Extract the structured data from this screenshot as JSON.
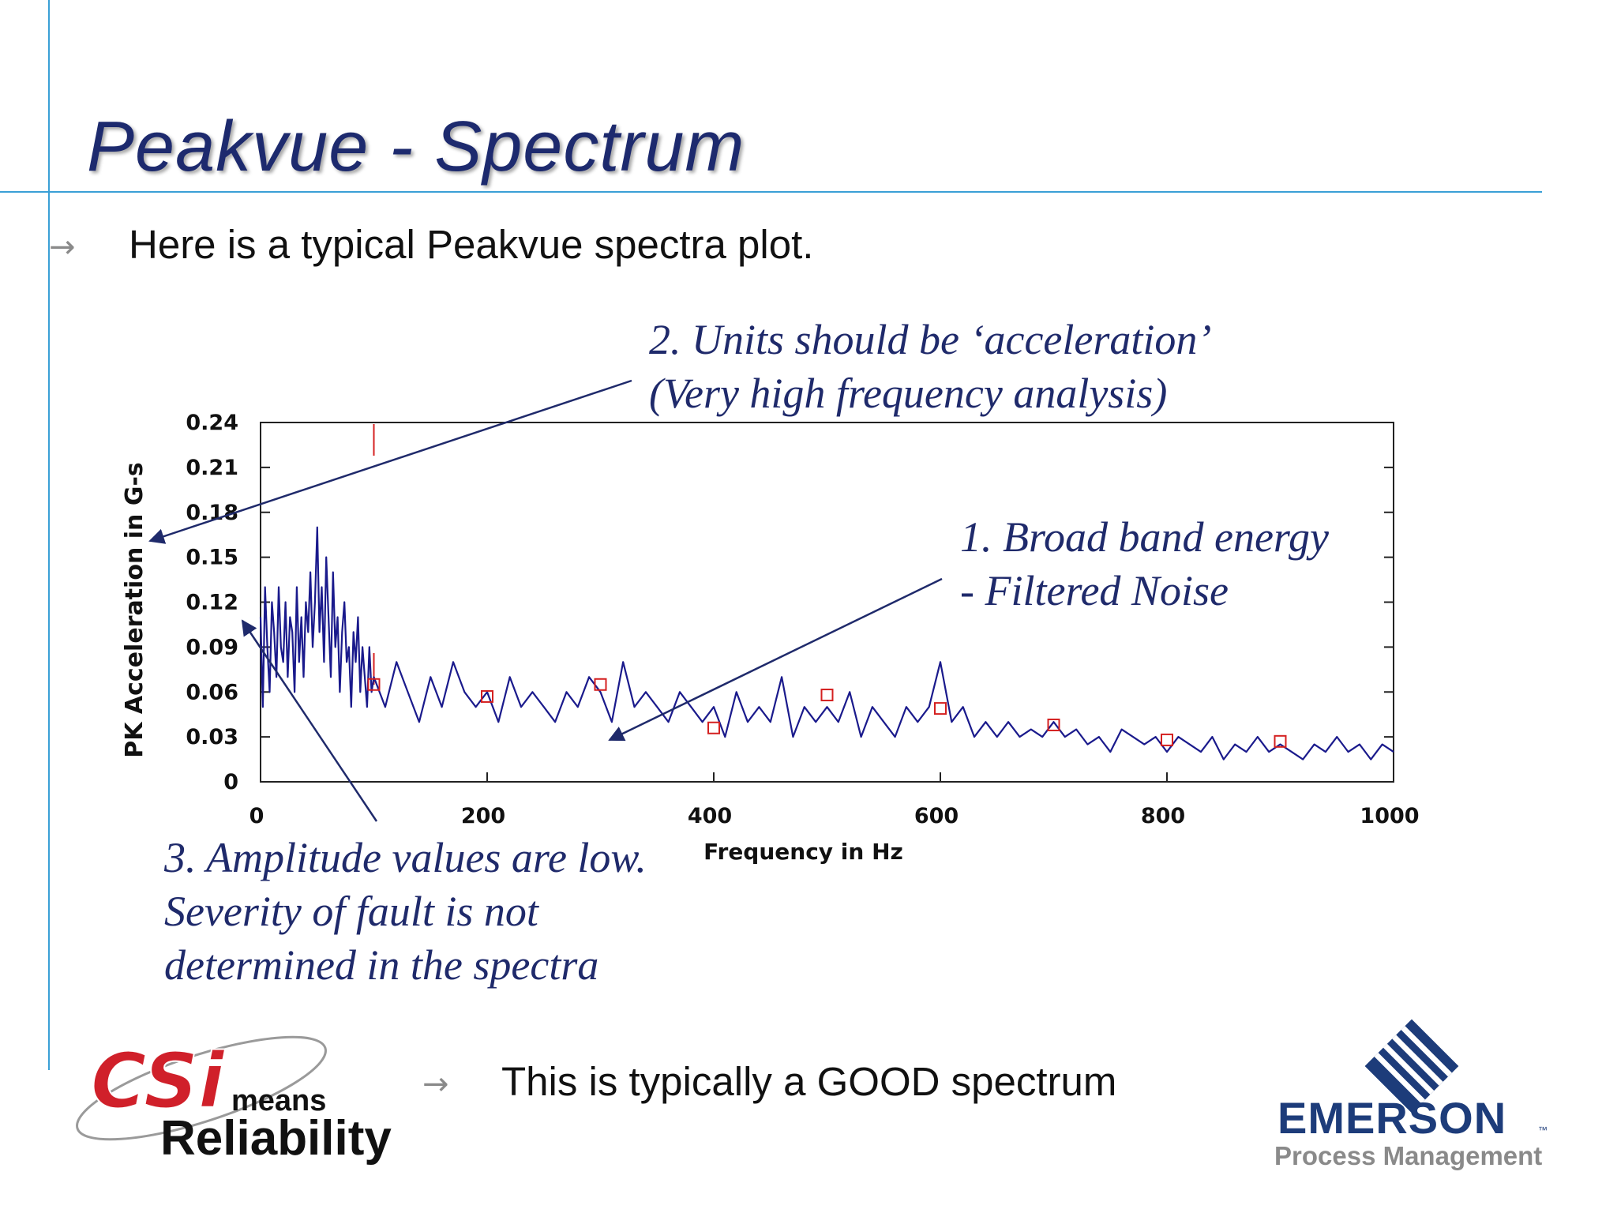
{
  "slide": {
    "title": "Peakvue - Spectrum",
    "bullet_top": "Here is a typical Peakvue spectra plot.",
    "bullet_bottom": "This is typically a GOOD spectrum",
    "bullet_arrow_glyph": "→"
  },
  "annotations": {
    "units_line1": "2. Units should be ‘acceleration’",
    "units_line2": "(Very high frequency analysis)",
    "broadband_line1": "1. Broad band energy",
    "broadband_line2": "- Filtered Noise",
    "amplitude_line1": "3. Amplitude values are low.",
    "amplitude_line2": "Severity of fault is not",
    "amplitude_line3": "determined in the spectra"
  },
  "logos": {
    "csi_text": "CSi",
    "csi_means": "means",
    "csi_reliability": "Reliability",
    "emerson": "EMERSON",
    "emerson_tm": "™",
    "emerson_sub": "Process Management"
  },
  "colors": {
    "title": "#1d2a6e",
    "accent_line": "#3aa0d6",
    "spectrum": "#1a1a8c",
    "annotation": "#1f2a6b",
    "marker_red": "#d42020",
    "csi_red": "#d0202a",
    "emerson_blue": "#1d3c7a"
  },
  "chart_data": {
    "type": "line",
    "xlabel": "Frequency in Hz",
    "ylabel": "PK Acceleration in G-s",
    "xlim": [
      0,
      1000
    ],
    "ylim": [
      0,
      0.24
    ],
    "xticks": [
      "0",
      "200",
      "400",
      "600",
      "800",
      "1000"
    ],
    "yticks": [
      "0.24",
      "0.21",
      "0.18",
      "0.15",
      "0.12",
      "0.09",
      "0.06",
      "0.03",
      "0"
    ],
    "grid": false,
    "cursor_frequency": 100,
    "series": [
      {
        "x": [
          0,
          2,
          4,
          6,
          8,
          10,
          12,
          14,
          16,
          18,
          20,
          22,
          24,
          26,
          28,
          30,
          32,
          34,
          36,
          38,
          40,
          42,
          44,
          46,
          48,
          50,
          52,
          54,
          56,
          58,
          60,
          62,
          64,
          66,
          68,
          70,
          72,
          74,
          76,
          78,
          80,
          82,
          84,
          86,
          88,
          90,
          92,
          94,
          96,
          98,
          100,
          110,
          120,
          130,
          140,
          150,
          160,
          170,
          180,
          190,
          200,
          210,
          220,
          230,
          240,
          250,
          260,
          270,
          280,
          290,
          300,
          310,
          320,
          330,
          340,
          350,
          360,
          370,
          380,
          390,
          400,
          410,
          420,
          430,
          440,
          450,
          460,
          470,
          480,
          490,
          500,
          510,
          520,
          530,
          540,
          550,
          560,
          570,
          580,
          590,
          600,
          610,
          620,
          630,
          640,
          650,
          660,
          670,
          680,
          690,
          700,
          710,
          720,
          730,
          740,
          750,
          760,
          770,
          780,
          790,
          800,
          810,
          820,
          830,
          840,
          850,
          860,
          870,
          880,
          890,
          900,
          910,
          920,
          930,
          940,
          950,
          960,
          970,
          980,
          990,
          1000
        ],
        "y": [
          0.11,
          0.05,
          0.13,
          0.09,
          0.06,
          0.12,
          0.1,
          0.07,
          0.13,
          0.09,
          0.08,
          0.12,
          0.07,
          0.11,
          0.1,
          0.06,
          0.13,
          0.08,
          0.11,
          0.07,
          0.12,
          0.1,
          0.14,
          0.09,
          0.12,
          0.17,
          0.1,
          0.13,
          0.08,
          0.15,
          0.11,
          0.07,
          0.14,
          0.09,
          0.11,
          0.06,
          0.1,
          0.12,
          0.08,
          0.09,
          0.05,
          0.1,
          0.08,
          0.11,
          0.06,
          0.09,
          0.07,
          0.05,
          0.09,
          0.06,
          0.07,
          0.05,
          0.08,
          0.06,
          0.04,
          0.07,
          0.05,
          0.08,
          0.06,
          0.05,
          0.06,
          0.04,
          0.07,
          0.05,
          0.06,
          0.05,
          0.04,
          0.06,
          0.05,
          0.07,
          0.06,
          0.04,
          0.08,
          0.05,
          0.06,
          0.05,
          0.04,
          0.06,
          0.05,
          0.04,
          0.05,
          0.03,
          0.06,
          0.04,
          0.05,
          0.04,
          0.07,
          0.03,
          0.05,
          0.04,
          0.05,
          0.04,
          0.06,
          0.03,
          0.05,
          0.04,
          0.03,
          0.05,
          0.04,
          0.05,
          0.08,
          0.04,
          0.05,
          0.03,
          0.04,
          0.03,
          0.04,
          0.03,
          0.035,
          0.03,
          0.04,
          0.03,
          0.035,
          0.025,
          0.03,
          0.02,
          0.035,
          0.03,
          0.025,
          0.03,
          0.02,
          0.03,
          0.025,
          0.02,
          0.03,
          0.015,
          0.025,
          0.02,
          0.03,
          0.02,
          0.025,
          0.02,
          0.015,
          0.025,
          0.02,
          0.03,
          0.02,
          0.025,
          0.015,
          0.025,
          0.02
        ]
      }
    ],
    "markers": [
      {
        "x": 100,
        "y": 0.065
      },
      {
        "x": 200,
        "y": 0.057
      },
      {
        "x": 300,
        "y": 0.065
      },
      {
        "x": 400,
        "y": 0.036
      },
      {
        "x": 500,
        "y": 0.058
      },
      {
        "x": 600,
        "y": 0.049
      },
      {
        "x": 700,
        "y": 0.038
      },
      {
        "x": 800,
        "y": 0.028
      },
      {
        "x": 900,
        "y": 0.027
      }
    ]
  }
}
